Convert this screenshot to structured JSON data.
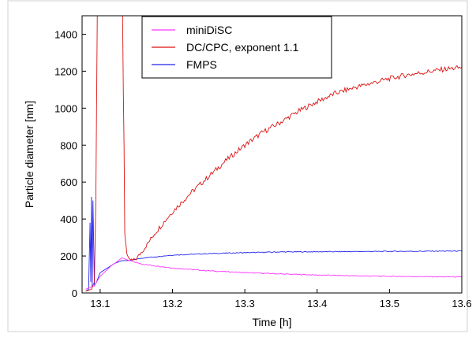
{
  "chart_data": {
    "type": "line",
    "title": "",
    "xlabel": "Time [h]",
    "ylabel": "Particle diameter [nm]",
    "xlim": [
      13.075,
      13.6
    ],
    "ylim": [
      0,
      1500
    ],
    "x_ticks": [
      13.1,
      13.2,
      13.3,
      13.4,
      13.5,
      13.6
    ],
    "x_tick_labels": [
      "13.1",
      "13.2",
      "13.3",
      "13.4",
      "13.5",
      "13.6"
    ],
    "y_ticks": [
      0,
      200,
      400,
      600,
      800,
      1000,
      1200,
      1400
    ],
    "y_tick_labels": [
      "0",
      "200",
      "400",
      "600",
      "800",
      "1000",
      "1200",
      "1400"
    ],
    "grid": false,
    "legend_position": "top-center",
    "series": [
      {
        "name": "miniDiSC",
        "color": "#ff33ff",
        "points": [
          [
            13.08,
            20
          ],
          [
            13.086,
            30
          ],
          [
            13.092,
            40
          ],
          [
            13.1,
            90
          ],
          [
            13.108,
            120
          ],
          [
            13.116,
            150
          ],
          [
            13.122,
            165
          ],
          [
            13.13,
            190
          ],
          [
            13.14,
            175
          ],
          [
            13.15,
            165
          ],
          [
            13.16,
            155
          ],
          [
            13.18,
            145
          ],
          [
            13.2,
            135
          ],
          [
            13.25,
            120
          ],
          [
            13.3,
            110
          ],
          [
            13.35,
            103
          ],
          [
            13.4,
            97
          ],
          [
            13.45,
            93
          ],
          [
            13.5,
            90
          ],
          [
            13.55,
            88
          ],
          [
            13.6,
            87
          ]
        ]
      },
      {
        "name": "DC/CPC, exponent 1.1",
        "color": "#dd1111",
        "points": [
          [
            13.08,
            10
          ],
          [
            13.088,
            20
          ],
          [
            13.092,
            60
          ],
          [
            13.094,
            500
          ],
          [
            13.096,
            1500
          ],
          [
            13.131,
            1500
          ],
          [
            13.132,
            1100
          ],
          [
            13.133,
            800
          ],
          [
            13.134,
            320
          ],
          [
            13.137,
            210
          ],
          [
            13.14,
            185
          ],
          [
            13.145,
            175
          ],
          [
            13.15,
            185
          ],
          [
            13.16,
            235
          ],
          [
            13.175,
            320
          ],
          [
            13.2,
            440
          ],
          [
            13.225,
            540
          ],
          [
            13.25,
            630
          ],
          [
            13.275,
            720
          ],
          [
            13.3,
            800
          ],
          [
            13.325,
            870
          ],
          [
            13.35,
            925
          ],
          [
            13.375,
            985
          ],
          [
            13.4,
            1035
          ],
          [
            13.425,
            1080
          ],
          [
            13.45,
            1110
          ],
          [
            13.475,
            1135
          ],
          [
            13.5,
            1160
          ],
          [
            13.525,
            1180
          ],
          [
            13.55,
            1195
          ],
          [
            13.575,
            1210
          ],
          [
            13.6,
            1220
          ]
        ]
      },
      {
        "name": "FMPS",
        "color": "#2222ee",
        "points": [
          [
            13.08,
            10
          ],
          [
            13.084,
            20
          ],
          [
            13.086,
            380
          ],
          [
            13.087,
            60
          ],
          [
            13.088,
            520
          ],
          [
            13.089,
            30
          ],
          [
            13.09,
            500
          ],
          [
            13.092,
            40
          ],
          [
            13.095,
            60
          ],
          [
            13.1,
            110
          ],
          [
            13.11,
            135
          ],
          [
            13.12,
            160
          ],
          [
            13.13,
            175
          ],
          [
            13.14,
            175
          ],
          [
            13.16,
            190
          ],
          [
            13.18,
            197
          ],
          [
            13.2,
            205
          ],
          [
            13.25,
            213
          ],
          [
            13.3,
            218
          ],
          [
            13.35,
            222
          ],
          [
            13.4,
            223
          ],
          [
            13.45,
            224
          ],
          [
            13.5,
            225
          ],
          [
            13.55,
            226
          ],
          [
            13.6,
            227
          ]
        ]
      }
    ]
  }
}
